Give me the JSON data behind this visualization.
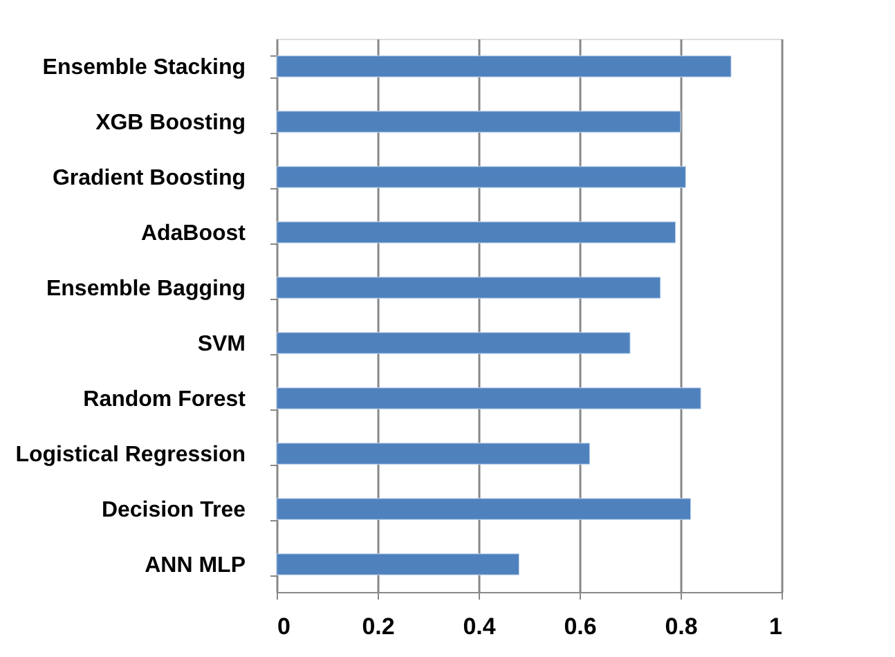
{
  "chart_data": {
    "type": "bar",
    "orientation": "horizontal",
    "categories": [
      "Ensemble Stacking",
      "XGB Boosting",
      "Gradient Boosting",
      "AdaBoost",
      "Ensemble Bagging",
      "SVM",
      "Random Forest",
      "Logistical Regression",
      "Decision Tree",
      "ANN MLP"
    ],
    "values": [
      0.9,
      0.8,
      0.81,
      0.79,
      0.76,
      0.7,
      0.84,
      0.62,
      0.82,
      0.48
    ],
    "color": "#4f81bd",
    "xlim": [
      0,
      1
    ],
    "xticks": [
      0,
      0.2,
      0.4,
      0.6,
      0.8,
      1
    ],
    "grid": "x"
  }
}
